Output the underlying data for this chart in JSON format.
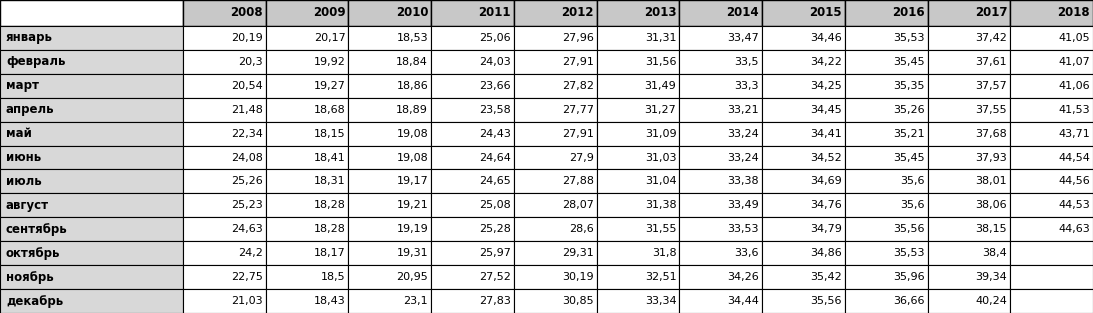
{
  "columns": [
    "",
    "2008",
    "2009",
    "2010",
    "2011",
    "2012",
    "2013",
    "2014",
    "2015",
    "2016",
    "2017",
    "2018"
  ],
  "rows": [
    [
      "январь",
      "20,19",
      "20,17",
      "18,53",
      "25,06",
      "27,96",
      "31,31",
      "33,47",
      "34,46",
      "35,53",
      "37,42",
      "41,05"
    ],
    [
      "февраль",
      "20,3",
      "19,92",
      "18,84",
      "24,03",
      "27,91",
      "31,56",
      "33,5",
      "34,22",
      "35,45",
      "37,61",
      "41,07"
    ],
    [
      "март",
      "20,54",
      "19,27",
      "18,86",
      "23,66",
      "27,82",
      "31,49",
      "33,3",
      "34,25",
      "35,35",
      "37,57",
      "41,06"
    ],
    [
      "апрель",
      "21,48",
      "18,68",
      "18,89",
      "23,58",
      "27,77",
      "31,27",
      "33,21",
      "34,45",
      "35,26",
      "37,55",
      "41,53"
    ],
    [
      "май",
      "22,34",
      "18,15",
      "19,08",
      "24,43",
      "27,91",
      "31,09",
      "33,24",
      "34,41",
      "35,21",
      "37,68",
      "43,71"
    ],
    [
      "июнь",
      "24,08",
      "18,41",
      "19,08",
      "24,64",
      "27,9",
      "31,03",
      "33,24",
      "34,52",
      "35,45",
      "37,93",
      "44,54"
    ],
    [
      "июль",
      "25,26",
      "18,31",
      "19,17",
      "24,65",
      "27,88",
      "31,04",
      "33,38",
      "34,69",
      "35,6",
      "38,01",
      "44,56"
    ],
    [
      "август",
      "25,23",
      "18,28",
      "19,21",
      "25,08",
      "28,07",
      "31,38",
      "33,49",
      "34,76",
      "35,6",
      "38,06",
      "44,53"
    ],
    [
      "сентябрь",
      "24,63",
      "18,28",
      "19,19",
      "25,28",
      "28,6",
      "31,55",
      "33,53",
      "34,79",
      "35,56",
      "38,15",
      "44,63"
    ],
    [
      "октябрь",
      "24,2",
      "18,17",
      "19,31",
      "25,97",
      "29,31",
      "31,8",
      "33,6",
      "34,86",
      "35,53",
      "38,4",
      ""
    ],
    [
      "ноябрь",
      "22,75",
      "18,5",
      "20,95",
      "27,52",
      "30,19",
      "32,51",
      "34,26",
      "35,42",
      "35,96",
      "39,34",
      ""
    ],
    [
      "декабрь",
      "21,03",
      "18,43",
      "23,1",
      "27,83",
      "30,85",
      "33,34",
      "34,44",
      "35,56",
      "36,66",
      "40,24",
      ""
    ]
  ],
  "header_corner_bg": "#ffffff",
  "header_year_bg": "#c8c8c8",
  "row_label_bg": "#d8d8d8",
  "row_data_bg": "#ffffff",
  "border_color": "#000000",
  "text_color": "#000000",
  "font_size": 8.0,
  "header_font_size": 8.5,
  "row_label_font_size": 8.5,
  "fig_width": 10.93,
  "fig_height": 3.13,
  "dpi": 100
}
